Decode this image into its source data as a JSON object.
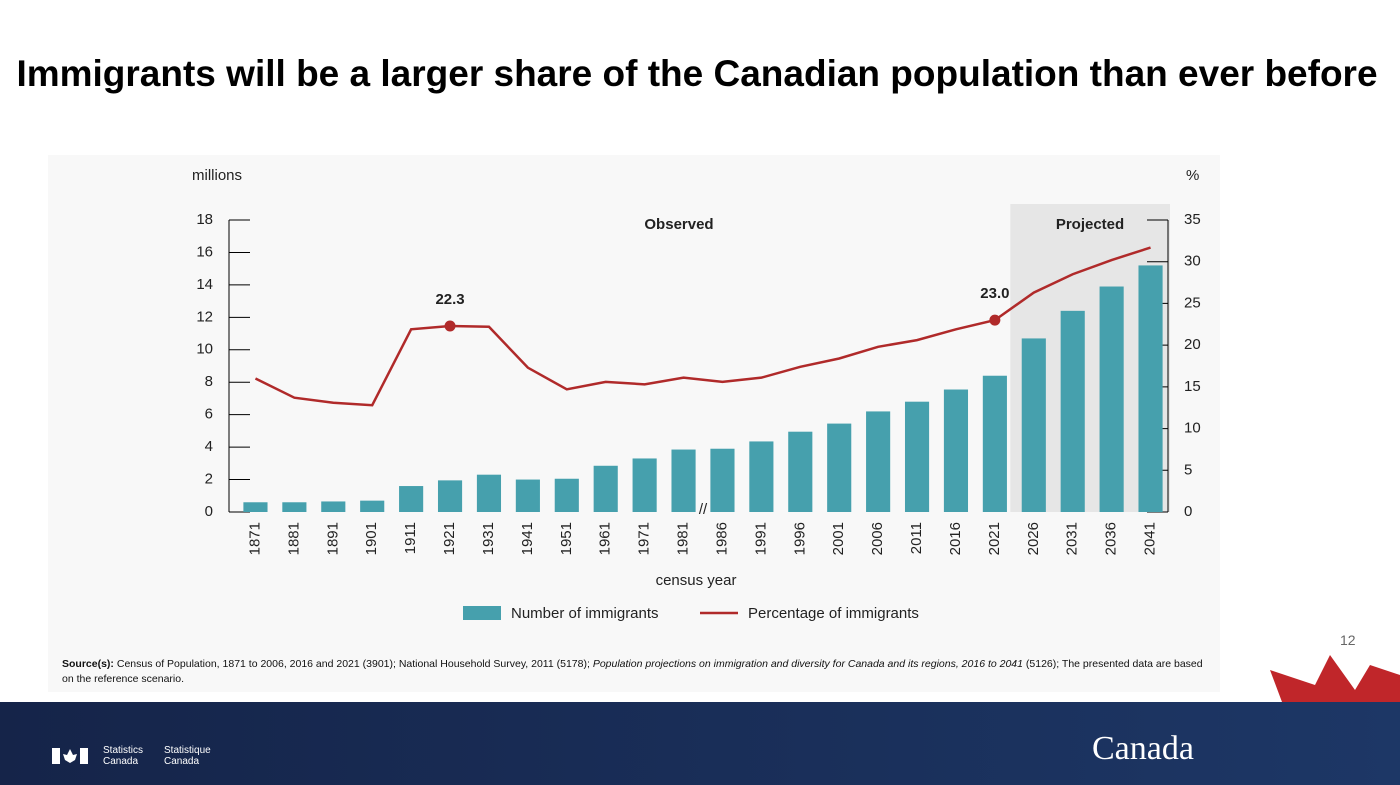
{
  "title": "Immigrants will be a larger share of the Canadian population than ever before",
  "chart_data": {
    "type": "bar-line",
    "y_label": "millions",
    "y2_label": "%",
    "x_label": "census year",
    "categories": [
      "1871",
      "1881",
      "1891",
      "1901",
      "1911",
      "1921",
      "1931",
      "1941",
      "1951",
      "1961",
      "1971",
      "1981",
      "1986",
      "1991",
      "1996",
      "2001",
      "2006",
      "2011",
      "2016",
      "2021",
      "2026",
      "2031",
      "2036",
      "2041"
    ],
    "series": [
      {
        "name": "Number of immigrants",
        "type": "bar",
        "color": "#46a0ad",
        "values": [
          0.6,
          0.6,
          0.65,
          0.7,
          1.6,
          1.95,
          2.3,
          2.0,
          2.05,
          2.85,
          3.3,
          3.85,
          3.9,
          4.35,
          4.95,
          5.45,
          6.2,
          6.8,
          7.55,
          8.4,
          10.7,
          12.4,
          13.9,
          15.2
        ]
      },
      {
        "name": "Percentage of immigrants",
        "type": "line",
        "axis": "y2",
        "color": "#b02a2a",
        "values": [
          16.0,
          13.7,
          13.1,
          12.8,
          21.9,
          22.3,
          22.2,
          17.3,
          14.7,
          15.6,
          15.3,
          16.1,
          15.6,
          16.1,
          17.4,
          18.4,
          19.8,
          20.6,
          21.9,
          23.0,
          26.3,
          28.5,
          30.2,
          31.7
        ]
      }
    ],
    "ylim": [
      0,
      18
    ],
    "yticks": [
      0,
      2,
      4,
      6,
      8,
      10,
      12,
      14,
      16,
      18
    ],
    "y2lim": [
      0,
      35
    ],
    "y2ticks": [
      0,
      5,
      10,
      15,
      20,
      25,
      30,
      35
    ],
    "annotations": [
      {
        "text": "Observed"
      },
      {
        "text": "Projected",
        "from": "2026"
      },
      {
        "text": "22.3",
        "category": "1921"
      },
      {
        "text": "23.0",
        "category": "2021"
      },
      {
        "text": "//",
        "category": "1981"
      }
    ]
  },
  "source": {
    "label": "Source(s):",
    "text": "Census of Population, 1871 to 2006, 2016 and 2021 (3901); National Household Survey, 2011 (5178);",
    "italic": "Population projections on immigration and diversity for Canada and its regions, 2016 to 2041",
    "end": "(5126); The presented data are based on the reference scenario."
  },
  "slide_number": "12",
  "footer": {
    "en": "Statistics Canada",
    "fr": "Statistique Canada",
    "wordmark": "Canada"
  }
}
